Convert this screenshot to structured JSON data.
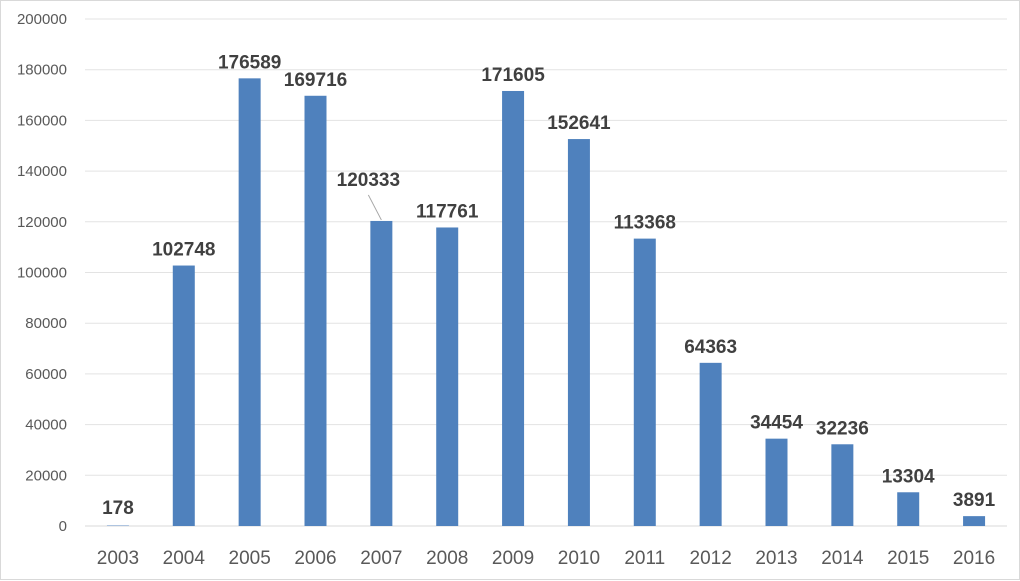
{
  "chart_data": {
    "type": "bar",
    "title": "",
    "xlabel": "",
    "ylabel": "",
    "categories": [
      "2003",
      "2004",
      "2005",
      "2006",
      "2007",
      "2008",
      "2009",
      "2010",
      "2011",
      "2012",
      "2013",
      "2014",
      "2015",
      "2016"
    ],
    "values": [
      178,
      102748,
      176589,
      169716,
      120333,
      117761,
      171605,
      152641,
      113368,
      64363,
      34454,
      32236,
      13304,
      3891
    ],
    "ylim": [
      0,
      200000
    ],
    "yticks": [
      "0",
      "20000",
      "40000",
      "60000",
      "80000",
      "100000",
      "120000",
      "140000",
      "160000",
      "180000",
      "200000"
    ],
    "grid": true,
    "legend": "none",
    "bar_color": "#4f81bd"
  }
}
